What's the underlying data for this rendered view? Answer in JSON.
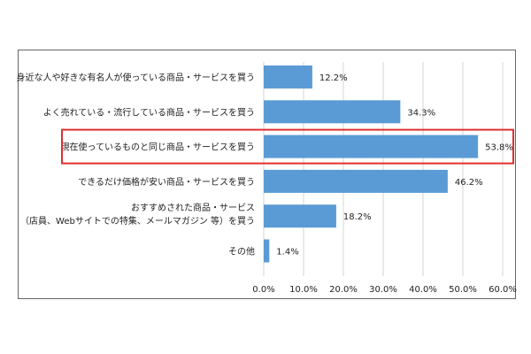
{
  "chart_data": {
    "type": "bar",
    "orientation": "horizontal",
    "categories": [
      [
        "身近な人や好きな有名人が使っている商品・サービスを買う"
      ],
      [
        "よく売れている・流行している商品・サービスを買う"
      ],
      [
        "現在使っているものと同じ商品・サービスを買う"
      ],
      [
        "できるだけ価格が安い商品・サービスを買う"
      ],
      [
        "おすすめされた商品・サービス",
        "（店員、Webサイトでの特集、メールマガジン 等）を買う"
      ],
      [
        "その他"
      ]
    ],
    "values": [
      12.2,
      34.3,
      53.8,
      46.2,
      18.2,
      1.4
    ],
    "value_labels": [
      "12.2%",
      "34.3%",
      "53.8%",
      "46.2%",
      "18.2%",
      "1.4%"
    ],
    "xlim": [
      0,
      60
    ],
    "xticks": [
      "0.0%",
      "10.0%",
      "20.0%",
      "30.0%",
      "40.0%",
      "50.0%",
      "60.0%"
    ],
    "highlighted_category_index": 2,
    "grid": true,
    "colors": {
      "bar": "#5b9bd5",
      "highlight_box": "#e03030",
      "grid": "#d4d4d4",
      "frame": "#666666"
    }
  }
}
